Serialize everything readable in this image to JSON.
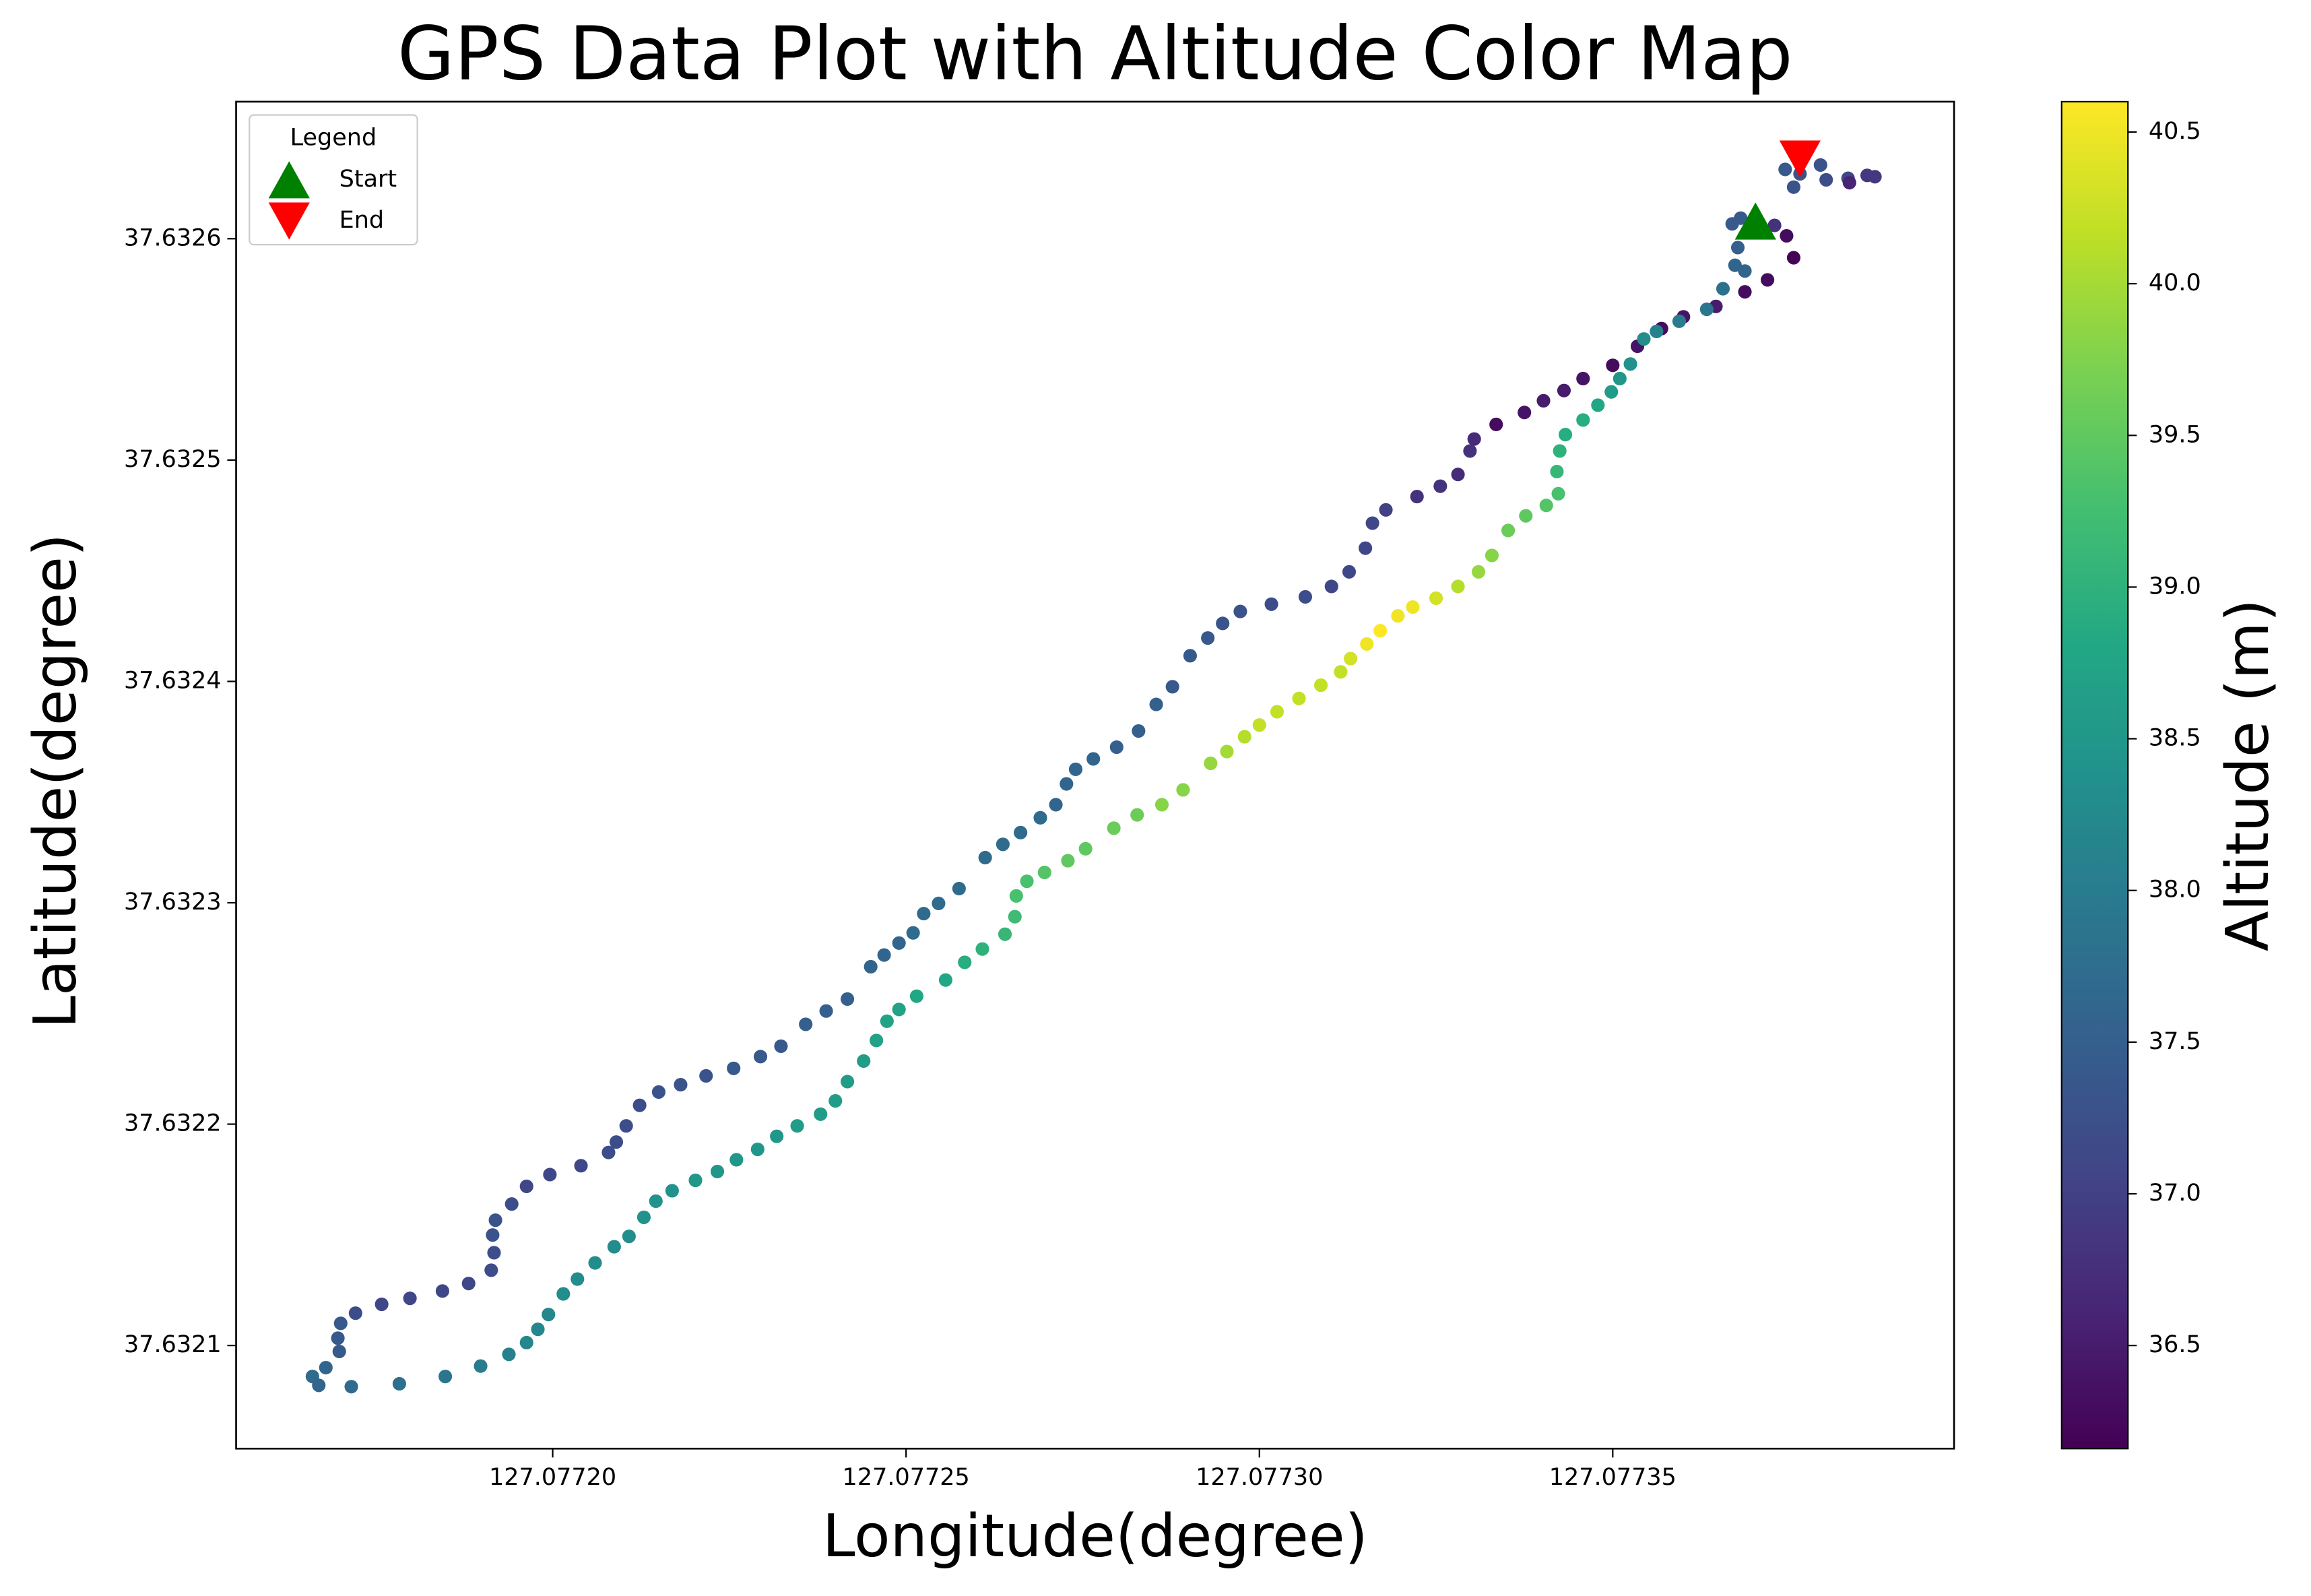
{
  "chart_data": {
    "type": "scatter",
    "title": "GPS Data Plot with Altitude Color Map",
    "x_label": "Longitude(degree)",
    "y_label": "Latitude(degree)",
    "xlim": [
      127.0771552,
      127.0773983
    ],
    "ylim": [
      37.6320534,
      37.6326619
    ],
    "xticks": [
      {
        "value": 127.0772,
        "label": "127.07720"
      },
      127.07725,
      {
        "value": 127.0773,
        "label": "127.07730"
      },
      127.07735
    ],
    "yticks": [
      37.6321,
      37.6322,
      37.6323,
      37.6324,
      37.6325,
      37.6326
    ],
    "colormap": "viridis",
    "clim": [
      36.16,
      40.6
    ],
    "colorbar_label": "Altitude (m)",
    "colorbar_ticks": [
      36.5,
      {
        "value": 37,
        "label": "37.0"
      },
      37.5,
      {
        "value": 38,
        "label": "38.0"
      },
      38.5,
      {
        "value": 39,
        "label": "39.0"
      },
      39.5,
      {
        "value": 40,
        "label": "40.0"
      },
      40.5
    ],
    "legend_title": "Legend",
    "legend_position": "upper left",
    "markers": [
      {
        "name": "Start",
        "color": "#008000",
        "shape": "triangle-up",
        "x": 127.0773702,
        "y": 37.632608
      },
      {
        "name": "End",
        "color": "#ff0000",
        "shape": "triangle-down",
        "x": 127.0773765,
        "y": 37.632636
      }
    ],
    "x": [
      127.0773756,
      127.0773746,
      127.0773719,
      127.0773687,
      127.0773646,
      127.07736,
      127.0773569,
      127.0773535,
      127.07735,
      127.0773458,
      127.0773431,
      127.0773402,
      127.0773375,
      127.0773335,
      127.0773304,
      127.0773298,
      127.0773281,
      127.0773256,
      127.0773223,
      127.0773179,
      127.077316,
      127.077315,
      127.0773127,
      127.0773102,
      127.0773065,
      127.0773017,
      127.0772973,
      127.0772948,
      127.0772927,
      127.0772902,
      127.0772877,
      127.0772854,
      127.0772829,
      127.0772798,
      127.0772765,
      127.077274,
      127.0772727,
      127.0772712,
      127.077269,
      127.0772662,
      127.0772637,
      127.0772612,
      127.0772575,
      127.0772546,
      127.0772525,
      127.077251,
      127.077249,
      127.0772469,
      127.077245,
      127.0772417,
      127.0772387,
      127.0772358,
      127.0772323,
      127.0772294,
      127.0772256,
      127.0772217,
      127.0772181,
      127.077215,
      127.0772123,
      127.0772104,
      127.077209,
      127.0772079,
      127.077204,
      127.0771996,
      127.0771963,
      127.0771942,
      127.0771919,
      127.0771915,
      127.0771917,
      127.0771913,
      127.0771881,
      127.0771844,
      127.0771798,
      127.0771758,
      127.0771721,
      127.07717,
      127.0771696,
      127.0771698,
      127.0771679,
      127.077166,
      127.0771669,
      127.0771715,
      127.0771783,
      127.0771848,
      127.0771898,
      127.0771938,
      127.0771963,
      127.0771979,
      127.0771994,
      127.0772015,
      127.0772035,
      127.077206,
      127.0772087,
      127.0772108,
      127.0772129,
      127.0772146,
      127.0772169,
      127.0772202,
      127.0772233,
      127.077226,
      127.077229,
      127.0772317,
      127.0772346,
      127.0772379,
      127.07724,
      127.0772417,
      127.077244,
      127.0772458,
      127.0772473,
      127.077249,
      127.0772515,
      127.0772556,
      127.0772583,
      127.0772608,
      127.077264,
      127.0772654,
      127.0772656,
      127.0772671,
      127.0772696,
      127.0772729,
      127.0772754,
      127.0772794,
      127.0772827,
      127.0772862,
      127.0772892,
      127.0772931,
      127.0772954,
      127.0772979,
      127.0773,
      127.0773025,
      127.0773056,
      127.0773087,
      127.0773115,
      127.0773129,
      127.0773152,
      127.0773171,
      127.0773196,
      127.0773217,
      127.077325,
      127.0773281,
      127.077331,
      127.0773329,
      127.0773352,
      127.0773377,
      127.0773406,
      127.0773423,
      127.0773421,
      127.0773425,
      127.0773433,
      127.0773458,
      127.0773479,
      127.0773498,
      127.077351,
      127.0773525,
      127.0773544,
      127.0773562,
      127.0773594,
      127.0773633,
      127.0773656,
      127.0773673,
      127.0773687,
      127.0773677,
      127.0773669,
      127.0773681,
      127.0773729,
      127.0773744,
      127.0773756,
      127.0773765,
      127.0773794,
      127.0773802,
      127.0773833,
      127.077386,
      127.0773835,
      127.0773871
    ],
    "y": [
      37.6325914,
      37.6326013,
      37.6325814,
      37.632576,
      37.6325694,
      37.6325647,
      37.6325594,
      37.6325514,
      37.6325428,
      37.6325368,
      37.6325314,
      37.6325268,
      37.6325215,
      37.6325161,
      37.6325095,
      37.6325041,
      37.6324935,
      37.6324882,
      37.6324835,
      37.6324775,
      37.6324715,
      37.6324602,
      37.6324495,
      37.6324429,
      37.6324382,
      37.6324349,
      37.6324316,
      37.6324262,
      37.6324196,
      37.6324116,
      37.6323976,
      37.6323896,
      37.6323776,
      37.6323703,
      37.632365,
      37.6323603,
      37.6323537,
      37.6323443,
      37.6323384,
      37.6323317,
      37.6323264,
      37.6323204,
      37.6323064,
      37.6322997,
      37.6322951,
      37.6322864,
      37.6322818,
      37.6322764,
      37.6322711,
      37.6322565,
      37.6322511,
      37.6322451,
      37.6322352,
      37.6322305,
      37.6322252,
      37.6322218,
      37.6322178,
      37.6322145,
      37.6322085,
      37.6321992,
      37.6321919,
      37.6321872,
      37.6321812,
      37.6321772,
      37.6321719,
      37.6321639,
      37.6321566,
      37.6321499,
      37.6321419,
      37.632134,
      37.632128,
      37.6321246,
      37.6321213,
      37.6321186,
      37.6321146,
      37.63211,
      37.6321033,
      37.6320973,
      37.63209,
      37.632086,
      37.632082,
      37.6320814,
      37.6320827,
      37.632086,
      37.6320907,
      37.632096,
      37.6321013,
      37.6321073,
      37.632114,
      37.6321233,
      37.63213,
      37.6321373,
      37.6321446,
      37.6321493,
      37.6321579,
      37.6321652,
      37.6321699,
      37.6321746,
      37.6321786,
      37.6321839,
      37.6321886,
      37.6321945,
      37.6321992,
      37.6322045,
      37.6322105,
      37.6322192,
      37.6322285,
      37.6322378,
      37.6322465,
      37.6322518,
      37.6322578,
      37.6322651,
      37.6322731,
      37.6322791,
      37.6322858,
      37.6322937,
      37.6323031,
      37.6323097,
      37.6323137,
      37.632319,
      37.6323244,
      37.6323337,
      37.6323397,
      37.6323443,
      37.632351,
      37.632363,
      37.6323683,
      37.632375,
      37.6323803,
      37.6323863,
      37.6323923,
      37.6323983,
      37.6324043,
      37.6324103,
      37.6324169,
      37.6324229,
      37.6324296,
      37.6324336,
      37.6324376,
      37.6324429,
      37.6324495,
      37.6324569,
      37.6324682,
      37.6324748,
      37.6324795,
      37.6324848,
      37.6324948,
      37.6325041,
      37.6325115,
      37.6325181,
      37.6325248,
      37.6325308,
      37.6325368,
      37.6325434,
      37.6325547,
      37.6325581,
      37.6325627,
      37.6325681,
      37.6325774,
      37.632588,
      37.6325854,
      37.632596,
      37.6326067,
      37.6326093,
      37.632606,
      37.6326313,
      37.6326233,
      37.6326293,
      37.6326333,
      37.6326266,
      37.6326273,
      37.6326286,
      37.6326253,
      37.632628
    ],
    "color_values": [
      36.2,
      36.3,
      36.3,
      36.3,
      36.5,
      36.4,
      36.3,
      36.4,
      36.3,
      36.4,
      36.5,
      36.5,
      36.4,
      36.3,
      36.7,
      36.8,
      36.7,
      36.8,
      36.8,
      37.0,
      37.1,
      37.1,
      37.1,
      37.1,
      37.2,
      37.2,
      37.3,
      37.3,
      37.4,
      37.4,
      37.4,
      37.5,
      37.5,
      37.5,
      37.6,
      37.6,
      37.6,
      37.6,
      37.7,
      37.7,
      37.7,
      37.7,
      37.7,
      37.7,
      37.7,
      37.7,
      37.6,
      37.6,
      37.6,
      37.5,
      37.5,
      37.5,
      37.4,
      37.4,
      37.4,
      37.3,
      37.3,
      37.3,
      37.2,
      37.2,
      37.2,
      37.2,
      37.1,
      37.1,
      37.1,
      37.2,
      37.3,
      37.3,
      37.2,
      37.2,
      37.1,
      37.1,
      37.1,
      37.1,
      37.2,
      37.4,
      37.4,
      37.4,
      37.6,
      37.7,
      37.6,
      37.7,
      37.8,
      37.9,
      38.0,
      38.1,
      38.2,
      38.2,
      38.2,
      38.3,
      38.3,
      38.3,
      38.3,
      38.3,
      38.4,
      38.4,
      38.4,
      38.5,
      38.5,
      38.5,
      38.5,
      38.5,
      38.6,
      38.6,
      38.6,
      38.6,
      38.6,
      38.7,
      38.7,
      38.7,
      38.8,
      38.8,
      38.9,
      39.0,
      39.1,
      39.2,
      39.3,
      39.3,
      39.4,
      39.5,
      39.5,
      39.6,
      39.6,
      39.8,
      39.8,
      39.9,
      40.0,
      40.1,
      40.2,
      40.2,
      40.2,
      40.2,
      40.2,
      40.3,
      40.5,
      40.6,
      40.5,
      40.5,
      40.3,
      40.1,
      39.9,
      39.8,
      39.6,
      39.5,
      39.4,
      39.3,
      39.1,
      39.0,
      38.9,
      38.9,
      38.8,
      38.6,
      38.5,
      38.4,
      38.3,
      38.1,
      38.0,
      37.9,
      37.8,
      37.6,
      37.6,
      37.5,
      37.4,
      37.4,
      36.8,
      37.4,
      37.3,
      37.3,
      37.3,
      37.2,
      37.1,
      36.9,
      36.6,
      36.9
    ]
  }
}
